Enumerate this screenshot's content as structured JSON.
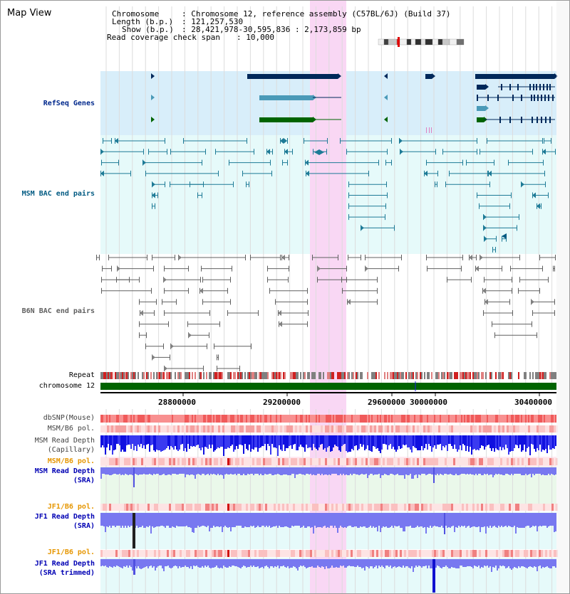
{
  "window": {
    "title": "Map View"
  },
  "header": {
    "chromosome_key": "Chromosome",
    "chromosome_value": ": Chromosome 12, reference assembly (C57BL/6J) (Build 37)",
    "length_key": "Length (b.p.)",
    "length_value": ": 121,257,530",
    "show_key": "Show (b.p.)",
    "show_value": ": 28,421,978-30,595,836 : 2,173,859 bp",
    "coverage_key": "Read coverage check span",
    "coverage_value": ": 10,000"
  },
  "tracks": {
    "refseq": "RefSeq Genes",
    "msm_bac": "MSM BAC end pairs",
    "b6n_bac": "B6N BAC end pairs",
    "repeat": "Repeat",
    "chromosome": "chromosome 12",
    "dbsnp": "dbSNP(Mouse)",
    "msm_b6_pol": "MSM/B6 pol.",
    "msm_read_depth_1": "MSM Read Depth",
    "msm_read_depth_1b": "(Capillary)",
    "msm_b6_pol_2": "MSM/B6 pol.",
    "msm_read_depth_2": "MSM Read Depth",
    "msm_read_depth_2b": "(SRA)",
    "jf1_b6_pol": "JF1/B6 pol.",
    "jf1_read_depth": "JF1 Read Depth",
    "jf1_read_depth_b": "(SRA)",
    "jf1_b6_pol_2": "JF1/B6 pol.",
    "jf1_read_depth_2": "JF1 Read Depth",
    "jf1_read_depth_2b": "(SRA trimmed)"
  },
  "axis": {
    "ticks": [
      "28800000",
      "29200000",
      "29600000",
      "30000000",
      "30400000"
    ]
  },
  "colors": {
    "refseq_bg": "#d8eefa",
    "msm_bg": "#e6fafa",
    "highlight": "#f9d7f4",
    "gene_dark": "#00285a",
    "gene_light": "#4a9ab8",
    "gene_green": "#006400",
    "msm_label": "#005a82",
    "b6n_label": "#606060",
    "refseq_label": "#00288c",
    "orange_label": "#e69600",
    "blue_label": "#0000b4",
    "chrom_green": "#006400",
    "depth_blue": "#1c1ce8",
    "depth_light": "#7878f0"
  }
}
